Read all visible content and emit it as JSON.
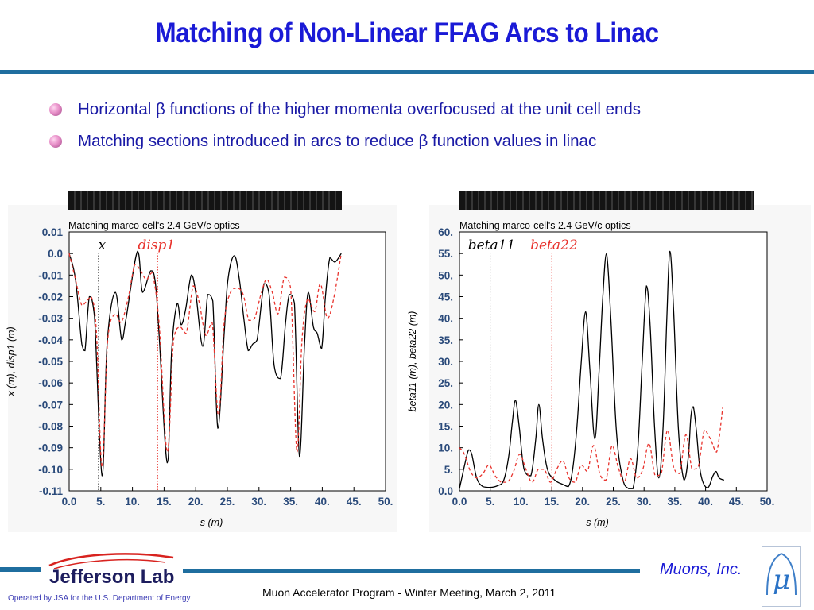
{
  "slide": {
    "title": "Matching of Non-Linear FFAG Arcs to Linac",
    "bullets": [
      "Horizontal β functions of the higher momenta overfocused at the unit cell ends",
      "Matching sections introduced in arcs to reduce β function values in linac"
    ]
  },
  "footer": {
    "logo_text": "Jefferson Lab",
    "muons_text": "Muons, Inc.",
    "mu_symbol": "μ",
    "operated_text": "Operated by JSA for the U.S. Department of Energy",
    "meeting_text": "Muon Accelerator Program - Winter Meeting, March 2, 2011"
  },
  "colors": {
    "title": "#1a1ad6",
    "rule": "#1f6e9f",
    "series_black": "#000000",
    "series_red": "#e8322c"
  },
  "chart_data": [
    {
      "type": "line",
      "title": "Matching marco-cell's 2.4 GeV/c optics",
      "xlabel": "s (m)",
      "ylabel": "x (m), disp1 (m)",
      "xlim": [
        0,
        50
      ],
      "ylim": [
        -0.11,
        0.01
      ],
      "xticks": [
        "0.0",
        "5.",
        "10.",
        "15.",
        "20.",
        "25.",
        "30.",
        "35.",
        "40.",
        "45.",
        "50."
      ],
      "yticks": [
        "0.01",
        "0.0",
        "-0.01",
        "-0.02",
        "-0.03",
        "-0.04",
        "-0.05",
        "-0.06",
        "-0.07",
        "-0.08",
        "-0.09",
        "-0.10",
        "-0.11"
      ],
      "grid": false,
      "annotations": [
        {
          "text": "x",
          "color": "#000000",
          "marker_x": 4.6
        },
        {
          "text": "disp1",
          "color": "#e8322c",
          "marker_x": 14.0
        }
      ],
      "series": [
        {
          "name": "x",
          "style": "solid",
          "color": "#000000",
          "x": [
            0,
            1.0,
            2.0,
            2.5,
            3.2,
            4.0,
            5.2,
            6.0,
            7.3,
            8.3,
            9.0,
            10.8,
            11.6,
            12.9,
            13.6,
            14.2,
            15.5,
            16.2,
            17.1,
            17.7,
            18.4,
            19.3,
            20.0,
            21.1,
            21.9,
            22.7,
            23.5,
            24.5,
            25.1,
            26.1,
            26.9,
            27.6,
            28.3,
            29.0,
            29.7,
            30.8,
            31.6,
            32.4,
            33.4,
            34.2,
            34.8,
            35.6,
            36.4,
            37.2,
            37.8,
            38.6,
            39.2,
            39.9,
            40.5,
            41.2,
            42.0,
            43.0
          ],
          "y": [
            0,
            -0.012,
            -0.042,
            -0.045,
            -0.02,
            -0.029,
            -0.103,
            -0.042,
            -0.018,
            -0.04,
            -0.03,
            0.001,
            -0.018,
            -0.008,
            -0.013,
            -0.037,
            -0.097,
            -0.045,
            -0.023,
            -0.033,
            -0.026,
            -0.01,
            -0.018,
            -0.043,
            -0.019,
            -0.022,
            -0.081,
            -0.037,
            -0.012,
            -0.001,
            -0.012,
            -0.03,
            -0.045,
            -0.042,
            -0.04,
            -0.014,
            -0.019,
            -0.052,
            -0.058,
            -0.032,
            -0.019,
            -0.023,
            -0.094,
            -0.042,
            -0.018,
            -0.034,
            -0.037,
            -0.044,
            -0.02,
            -0.002,
            -0.004,
            0
          ]
        },
        {
          "name": "disp1",
          "style": "dashed",
          "color": "#e8322c",
          "x": [
            0,
            1.0,
            2.0,
            2.8,
            3.5,
            4.3,
            5.2,
            6.1,
            7.3,
            8.2,
            9.3,
            10.4,
            11.3,
            12.2,
            13.1,
            14.2,
            15.5,
            16.5,
            17.5,
            18.5,
            19.6,
            20.5,
            21.6,
            22.6,
            23.6,
            24.5,
            25.5,
            26.5,
            27.5,
            28.4,
            29.3,
            30.3,
            31.2,
            32.1,
            33.0,
            34.0,
            35.0,
            36.0,
            36.8,
            37.7,
            38.8,
            39.7,
            40.8,
            41.8,
            43.0
          ],
          "y": [
            0,
            -0.012,
            -0.024,
            -0.022,
            -0.02,
            -0.036,
            -0.099,
            -0.04,
            -0.028,
            -0.032,
            -0.021,
            -0.005,
            -0.008,
            -0.012,
            -0.009,
            -0.032,
            -0.092,
            -0.04,
            -0.034,
            -0.037,
            -0.015,
            -0.022,
            -0.038,
            -0.032,
            -0.075,
            -0.032,
            -0.018,
            -0.016,
            -0.019,
            -0.031,
            -0.03,
            -0.019,
            -0.012,
            -0.018,
            -0.028,
            -0.011,
            -0.016,
            -0.092,
            -0.04,
            -0.021,
            -0.027,
            -0.014,
            -0.03,
            -0.021,
            0
          ]
        }
      ]
    },
    {
      "type": "line",
      "title": "Matching marco-cell's 2.4 GeV/c optics",
      "xlabel": "s (m)",
      "ylabel": "beta11 (m), beta22 (m)",
      "xlim": [
        0,
        50
      ],
      "ylim": [
        0,
        60
      ],
      "xticks": [
        "0.0",
        "5.",
        "10.",
        "15.",
        "20.",
        "25.",
        "30.",
        "35.",
        "40.",
        "45.",
        "50."
      ],
      "yticks": [
        "60.",
        "55.",
        "50.",
        "45.",
        "40.",
        "35.",
        "30.",
        "25.",
        "20.",
        "15.",
        "10.",
        "5.",
        "0.0"
      ],
      "grid": false,
      "annotations": [
        {
          "text": "beta11",
          "color": "#000000",
          "marker_x": 5.0
        },
        {
          "text": "beta22",
          "color": "#e8322c",
          "marker_x": 15.0
        }
      ],
      "series": [
        {
          "name": "beta11",
          "style": "solid",
          "color": "#000000",
          "x": [
            0,
            1.0,
            1.5,
            2.0,
            2.8,
            3.8,
            5.0,
            6.2,
            7.2,
            8.0,
            8.6,
            9.1,
            9.7,
            10.5,
            11.6,
            12.4,
            12.9,
            13.5,
            14.3,
            15.5,
            16.8,
            17.7,
            18.4,
            19.1,
            19.8,
            20.5,
            21.2,
            22.0,
            22.7,
            23.3,
            23.9,
            24.6,
            25.5,
            26.5,
            27.5,
            28.2,
            29.0,
            29.7,
            30.4,
            31.0,
            31.7,
            32.4,
            33.1,
            33.7,
            34.2,
            34.8,
            35.6,
            36.5,
            37.2,
            37.6,
            38.0,
            38.5,
            39.2,
            40.3,
            41.2,
            41.7,
            42.2,
            43.0
          ],
          "y": [
            0.5,
            7.0,
            9.5,
            8.5,
            3.0,
            1.0,
            0.8,
            1.2,
            2.5,
            8.0,
            16.0,
            21.0,
            15.0,
            5.0,
            3.5,
            12.0,
            20.0,
            12.0,
            5.0,
            2.5,
            1.5,
            1.0,
            5.0,
            15.0,
            30.0,
            41.5,
            28.0,
            12.0,
            28.0,
            45.0,
            55.0,
            40.0,
            14.0,
            3.0,
            0.5,
            0.5,
            10.0,
            30.0,
            47.5,
            38.0,
            15.0,
            3.0,
            15.0,
            40.0,
            55.5,
            42.0,
            14.0,
            2.5,
            8.0,
            17.0,
            19.5,
            14.0,
            4.0,
            0.7,
            3.5,
            4.5,
            3.0,
            2.5
          ]
        },
        {
          "name": "beta22",
          "style": "dashed",
          "color": "#e8322c",
          "x": [
            0,
            0.8,
            1.8,
            2.8,
            3.8,
            4.8,
            5.8,
            6.8,
            7.8,
            8.8,
            9.8,
            10.8,
            11.8,
            12.8,
            13.8,
            14.8,
            15.8,
            16.8,
            17.8,
            18.8,
            19.8,
            20.8,
            21.8,
            22.8,
            23.8,
            24.8,
            25.8,
            26.8,
            27.8,
            28.8,
            29.8,
            30.8,
            31.8,
            32.8,
            33.8,
            34.8,
            35.8,
            36.8,
            37.8,
            38.8,
            39.8,
            40.8,
            41.8,
            42.8
          ],
          "y": [
            10.0,
            8.5,
            4.5,
            3.0,
            4.0,
            6.0,
            3.5,
            2.0,
            2.0,
            4.5,
            8.5,
            5.0,
            2.0,
            5.0,
            5.0,
            2.0,
            5.0,
            7.0,
            3.0,
            2.0,
            6.0,
            4.5,
            10.5,
            4.0,
            2.5,
            10.5,
            5.5,
            2.0,
            7.5,
            3.0,
            5.0,
            11.0,
            3.5,
            4.0,
            14.0,
            5.5,
            4.0,
            13.0,
            5.0,
            5.5,
            14.0,
            12.0,
            9.0,
            19.5
          ]
        }
      ]
    }
  ]
}
